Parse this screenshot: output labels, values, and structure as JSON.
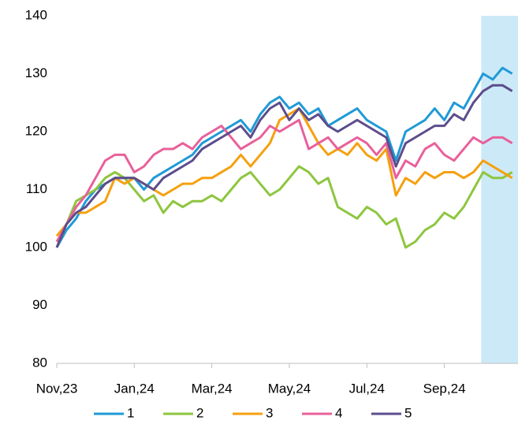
{
  "chart_data": {
    "type": "line",
    "x": [
      0,
      0.25,
      0.5,
      0.75,
      1,
      1.25,
      1.5,
      1.75,
      2,
      2.25,
      2.5,
      2.75,
      3,
      3.25,
      3.5,
      3.75,
      4,
      4.25,
      4.5,
      4.75,
      5,
      5.25,
      5.5,
      5.75,
      6,
      6.25,
      6.5,
      6.75,
      7,
      7.25,
      7.5,
      7.75,
      8,
      8.25,
      8.5,
      8.75,
      9,
      9.25,
      9.5,
      9.75,
      10,
      10.25,
      10.5,
      10.75,
      11,
      11.25,
      11.5,
      11.75
    ],
    "xlim": [
      0,
      11.9
    ],
    "xticks": [
      {
        "value": 0,
        "label": "Nov,23"
      },
      {
        "value": 2,
        "label": "Jan,24"
      },
      {
        "value": 4,
        "label": "Mar,24"
      },
      {
        "value": 6,
        "label": "May,24"
      },
      {
        "value": 8,
        "label": "Jul,24"
      },
      {
        "value": 10,
        "label": "Sep,24"
      }
    ],
    "ylim": [
      80,
      140
    ],
    "yticks": [
      80,
      90,
      100,
      110,
      120,
      130,
      140
    ],
    "shaded_region": {
      "x": [
        10.95,
        11.9
      ],
      "color": "#cce9f7"
    },
    "legend": "bottom",
    "series": [
      {
        "name": "1",
        "color": "#1f9ad6",
        "values": [
          100,
          103,
          105,
          108,
          110,
          111,
          112,
          112,
          112,
          110,
          112,
          113,
          114,
          115,
          116,
          118,
          119,
          120,
          121,
          122,
          120,
          123,
          125,
          126,
          124,
          125,
          123,
          124,
          121,
          122,
          123,
          124,
          122,
          121,
          120,
          115,
          120,
          121,
          122,
          124,
          122,
          125,
          124,
          127,
          130,
          129,
          131,
          130
        ]
      },
      {
        "name": "2",
        "color": "#8dc63f",
        "values": [
          100,
          104,
          108,
          109,
          110,
          112,
          113,
          112,
          110,
          108,
          109,
          106,
          108,
          107,
          108,
          108,
          109,
          108,
          110,
          112,
          113,
          111,
          109,
          110,
          112,
          114,
          113,
          111,
          112,
          107,
          106,
          105,
          107,
          106,
          104,
          105,
          100,
          101,
          103,
          104,
          106,
          105,
          107,
          110,
          113,
          112,
          112,
          113
        ]
      },
      {
        "name": "3",
        "color": "#f5a00f",
        "values": [
          102,
          104,
          106,
          106,
          107,
          108,
          112,
          111,
          112,
          111,
          110,
          109,
          110,
          111,
          111,
          112,
          112,
          113,
          114,
          116,
          114,
          116,
          118,
          122,
          123,
          124,
          121,
          118,
          116,
          117,
          116,
          118,
          116,
          115,
          117,
          109,
          112,
          111,
          113,
          112,
          113,
          113,
          112,
          113,
          115,
          114,
          113,
          112
        ]
      },
      {
        "name": "4",
        "color": "#e8609a",
        "values": [
          101,
          104,
          107,
          109,
          112,
          115,
          116,
          116,
          113,
          114,
          116,
          117,
          117,
          118,
          117,
          119,
          120,
          121,
          119,
          117,
          118,
          119,
          121,
          120,
          121,
          122,
          117,
          118,
          119,
          117,
          118,
          119,
          118,
          116,
          118,
          112,
          115,
          114,
          117,
          118,
          116,
          115,
          117,
          119,
          118,
          119,
          119,
          118
        ]
      },
      {
        "name": "5",
        "color": "#5c4d8c",
        "values": [
          100,
          104,
          106,
          107,
          109,
          111,
          112,
          112,
          112,
          111,
          110,
          112,
          113,
          114,
          115,
          117,
          118,
          119,
          120,
          121,
          119,
          122,
          124,
          125,
          122,
          124,
          122,
          123,
          121,
          120,
          121,
          122,
          121,
          120,
          119,
          114,
          118,
          119,
          120,
          121,
          121,
          123,
          122,
          125,
          127,
          128,
          128,
          127
        ]
      }
    ]
  }
}
